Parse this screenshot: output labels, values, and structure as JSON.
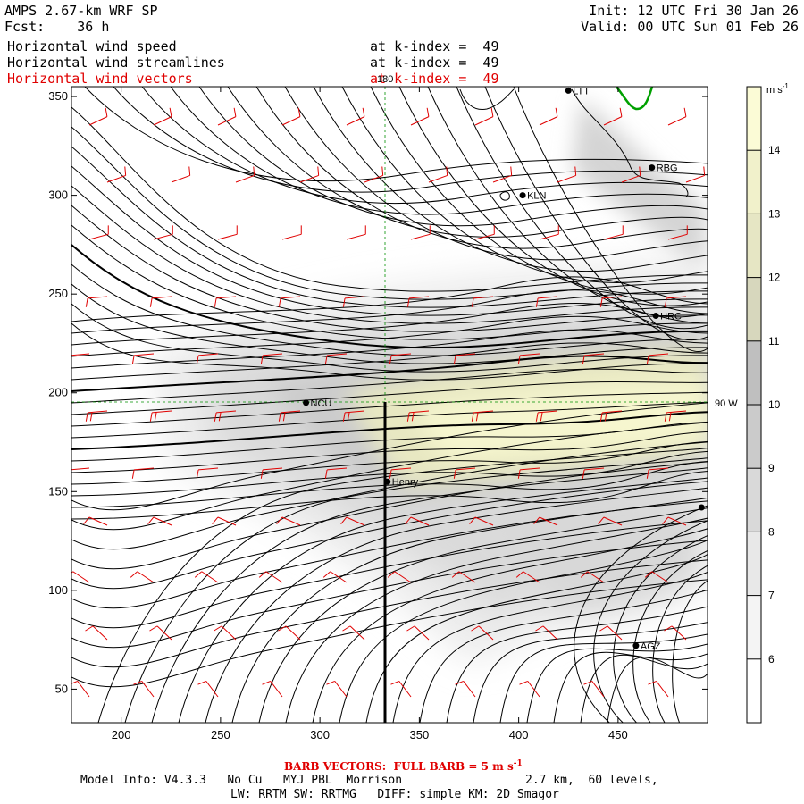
{
  "header": {
    "model": "AMPS 2.67-km WRF SP",
    "forecast": "Fcst:    36 h",
    "init": "Init: 12 UTC Fri 30 Jan 26",
    "valid": "Valid: 00 UTC Sun 01 Feb 26",
    "fields": [
      {
        "name": "Horizontal wind speed",
        "level": "at k-index =  49"
      },
      {
        "name": "Horizontal wind streamlines",
        "level": "at k-index =  49"
      },
      {
        "name": "Horizontal wind vectors",
        "level": "at k-index =  49"
      }
    ]
  },
  "chart_data": {
    "type": "heatmap",
    "title": "Horizontal wind speed / streamlines / vectors",
    "colorbar": {
      "units": "m s",
      "units_exp": "-1",
      "levels": [
        6,
        7,
        8,
        9,
        10,
        11,
        12,
        13,
        14
      ],
      "range": [
        5,
        15
      ],
      "colors": [
        "#ffffff",
        "#f4f4f4",
        "#e8e8e8",
        "#d9d9d9",
        "#cbcbcb",
        "#bfbfbf",
        "#d7d7bd",
        "#e6e6c4",
        "#f1f1cb",
        "#fbfbd6"
      ]
    },
    "x_axis": {
      "range": [
        175,
        495
      ],
      "ticks": [
        200,
        250,
        300,
        350,
        400,
        450
      ]
    },
    "y_axis": {
      "range": [
        33,
        355
      ],
      "ticks": [
        50,
        100,
        150,
        200,
        250,
        300,
        350
      ]
    },
    "reference_lines": [
      {
        "label": "180",
        "orientation": "vertical",
        "x": 334
      },
      {
        "label": "90 W",
        "orientation": "horizontal",
        "y": 195
      }
    ],
    "cross_section": {
      "x": 334,
      "y_from": 33,
      "y_to": 195
    },
    "stations": [
      {
        "name": "LTT",
        "x": 425,
        "y": 353
      },
      {
        "name": "RBG",
        "x": 467,
        "y": 314
      },
      {
        "name": "KLN",
        "x": 402,
        "y": 300
      },
      {
        "name": "HRC",
        "x": 469,
        "y": 239
      },
      {
        "name": "NCU",
        "x": 293,
        "y": 195
      },
      {
        "name": "Henry",
        "x": 334,
        "y": 155
      },
      {
        "name": "",
        "x": 492,
        "y": 142
      },
      {
        "name": "AGZ",
        "x": 459,
        "y": 72
      }
    ],
    "barb_legend": "BARB VECTORS:  FULL BARB = 5 m s"
  },
  "footer": {
    "line1_left": "Model Info: V4.3.3   No Cu   MYJ PBL  Morrison",
    "line1_right": "2.7 km,  60 levels,",
    "line2": "LW: RRTM SW: RRTMG   DIFF: simple KM: 2D Smagor"
  }
}
